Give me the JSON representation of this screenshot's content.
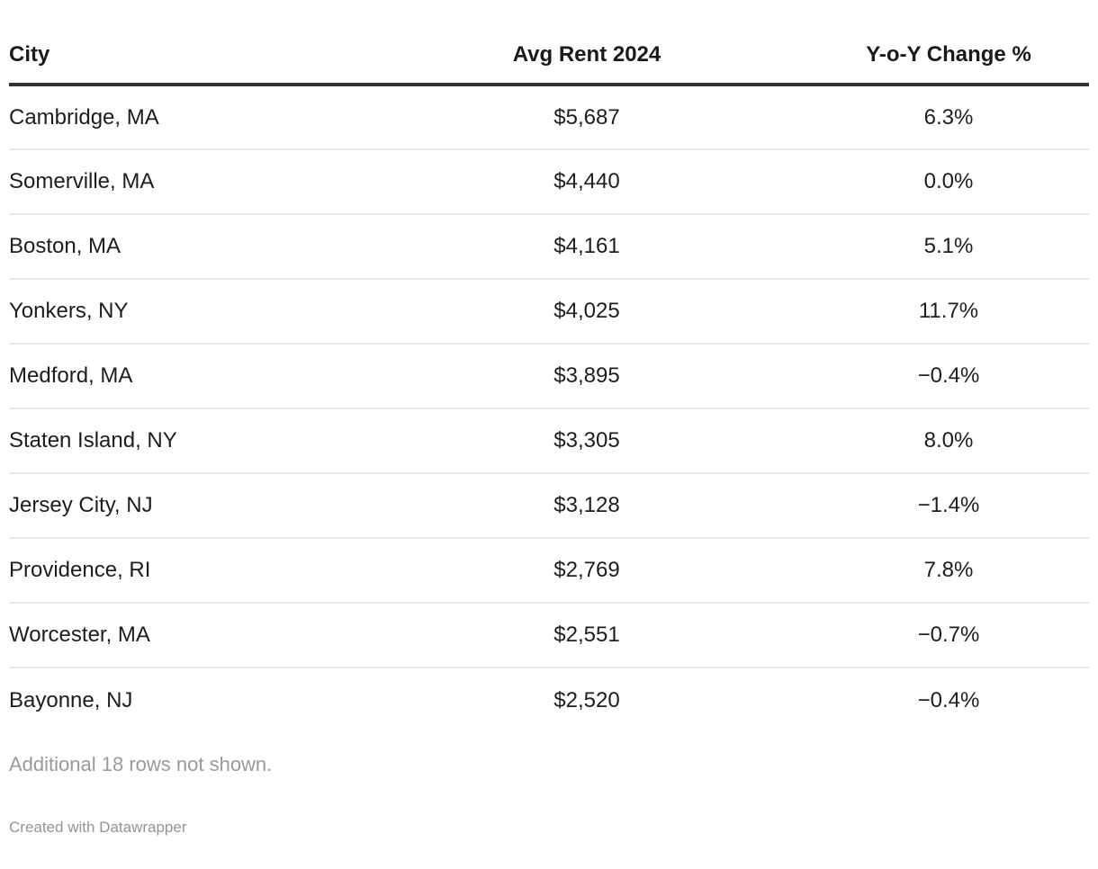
{
  "table": {
    "columns": [
      {
        "id": "city",
        "label": "City",
        "align": "left"
      },
      {
        "id": "rent",
        "label": "Avg Rent 2024",
        "align": "center"
      },
      {
        "id": "change",
        "label": "Y-o-Y Change %",
        "align": "center"
      }
    ],
    "rows": [
      {
        "city": "Cambridge, MA",
        "rent": "$5,687",
        "change": "6.3%"
      },
      {
        "city": "Somerville, MA",
        "rent": "$4,440",
        "change": "0.0%"
      },
      {
        "city": "Boston, MA",
        "rent": "$4,161",
        "change": "5.1%"
      },
      {
        "city": "Yonkers, NY",
        "rent": "$4,025",
        "change": "11.7%"
      },
      {
        "city": "Medford, MA",
        "rent": "$3,895",
        "change": "−0.4%"
      },
      {
        "city": "Staten Island, NY",
        "rent": "$3,305",
        "change": "8.0%"
      },
      {
        "city": "Jersey City, NJ",
        "rent": "$3,128",
        "change": "−1.4%"
      },
      {
        "city": "Providence, RI",
        "rent": "$2,769",
        "change": "7.8%"
      },
      {
        "city": "Worcester, MA",
        "rent": "$2,551",
        "change": "−0.7%"
      },
      {
        "city": "Bayonne, NJ",
        "rent": "$2,520",
        "change": "−0.4%"
      }
    ],
    "additional_note": "Additional 18 rows not shown."
  },
  "footer": {
    "attribution": "Created with Datawrapper"
  },
  "colors": {
    "text": "#1d1d1d",
    "header_rule": "#333333",
    "row_rule": "#e9e9e9",
    "muted_text": "#9a9a9a",
    "attribution_text": "#949494",
    "background": "#ffffff"
  },
  "chart_data": {
    "type": "table",
    "title": "",
    "columns": [
      "City",
      "Avg Rent 2024",
      "Y-o-Y Change %"
    ],
    "rows": [
      {
        "city": "Cambridge, MA",
        "avg_rent_2024": 5687,
        "yoy_change_pct": 6.3
      },
      {
        "city": "Somerville, MA",
        "avg_rent_2024": 4440,
        "yoy_change_pct": 0.0
      },
      {
        "city": "Boston, MA",
        "avg_rent_2024": 4161,
        "yoy_change_pct": 5.1
      },
      {
        "city": "Yonkers, NY",
        "avg_rent_2024": 4025,
        "yoy_change_pct": 11.7
      },
      {
        "city": "Medford, MA",
        "avg_rent_2024": 3895,
        "yoy_change_pct": -0.4
      },
      {
        "city": "Staten Island, NY",
        "avg_rent_2024": 3305,
        "yoy_change_pct": 8.0
      },
      {
        "city": "Jersey City, NJ",
        "avg_rent_2024": 3128,
        "yoy_change_pct": -1.4
      },
      {
        "city": "Providence, RI",
        "avg_rent_2024": 2769,
        "yoy_change_pct": 7.8
      },
      {
        "city": "Worcester, MA",
        "avg_rent_2024": 2551,
        "yoy_change_pct": -0.7
      },
      {
        "city": "Bayonne, NJ",
        "avg_rent_2024": 2520,
        "yoy_change_pct": -0.4
      }
    ],
    "hidden_rows_count": 18,
    "layout_hints": {
      "numeric_alignment": "center",
      "row_rules": true,
      "header_rule_weight": "thick"
    }
  }
}
